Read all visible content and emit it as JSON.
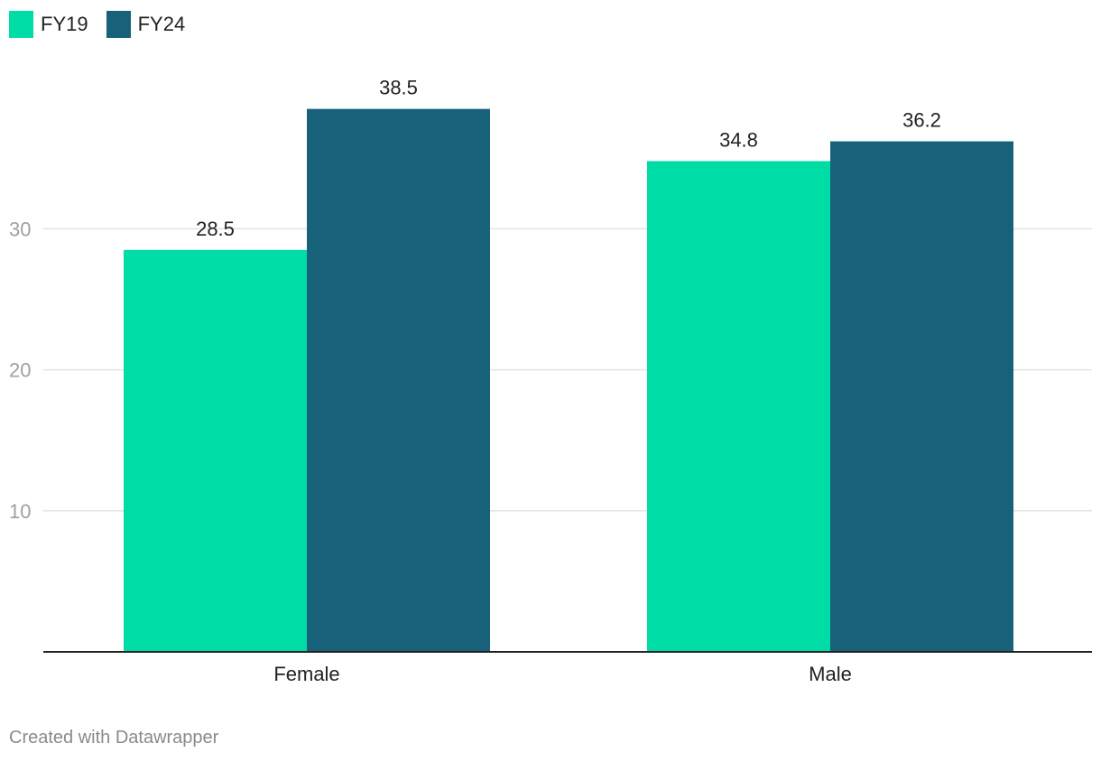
{
  "legend": {
    "items": [
      {
        "label": "FY19",
        "color": "#00dca6"
      },
      {
        "label": "FY24",
        "color": "#18617a"
      }
    ]
  },
  "footer": {
    "credit": "Created with Datawrapper"
  },
  "colors": {
    "gridline": "#e3e3e3",
    "baseline": "#222222",
    "tick_label": "#a0a0a0",
    "text": "#222222"
  },
  "chart_data": {
    "type": "bar",
    "categories": [
      "Female",
      "Male"
    ],
    "series": [
      {
        "name": "FY19",
        "values": [
          28.5,
          34.8
        ],
        "color": "#00dca6"
      },
      {
        "name": "FY24",
        "values": [
          38.5,
          36.2
        ],
        "color": "#18617a"
      }
    ],
    "title": "",
    "xlabel": "",
    "ylabel": "",
    "ylim": [
      0,
      40
    ],
    "yticks": [
      10,
      20,
      30
    ],
    "grid": true,
    "legend_position": "top-left",
    "data_labels": true
  }
}
